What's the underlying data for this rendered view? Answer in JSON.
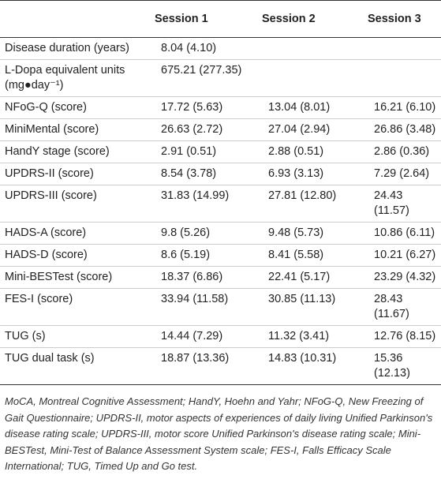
{
  "table": {
    "columns": [
      "Session 1",
      "Session 2",
      "Session 3"
    ],
    "rows": [
      {
        "label": "Disease duration (years)",
        "cells": [
          "8.04 (4.10)"
        ]
      },
      {
        "label": "L-Dopa equivalent units (mg●day⁻¹)",
        "cells": [
          "675.21 (277.35)"
        ]
      },
      {
        "label": "NFoG-Q (score)",
        "cells": [
          "17.72 (5.63)",
          "13.04 (8.01)",
          "16.21 (6.10)"
        ]
      },
      {
        "label": "MiniMental (score)",
        "cells": [
          "26.63 (2.72)",
          "27.04 (2.94)",
          "26.86 (3.48)"
        ]
      },
      {
        "label": "HandY stage (score)",
        "cells": [
          "2.91 (0.51)",
          "2.88 (0.51)",
          "2.86 (0.36)"
        ]
      },
      {
        "label": "UPDRS-II (score)",
        "cells": [
          "8.54 (3.78)",
          "6.93 (3.13)",
          "7.29 (2.64)"
        ]
      },
      {
        "label": "UPDRS-III (score)",
        "cells": [
          "31.83 (14.99)",
          "27.81 (12.80)",
          "24.43 (11.57)"
        ]
      },
      {
        "label": "HADS-A (score)",
        "cells": [
          "9.8 (5.26)",
          "9.48 (5.73)",
          "10.86 (6.11)"
        ]
      },
      {
        "label": "HADS-D (score)",
        "cells": [
          "8.6 (5.19)",
          "8.41 (5.58)",
          "10.21 (6.27)"
        ]
      },
      {
        "label": "Mini-BESTest (score)",
        "cells": [
          "18.37 (6.86)",
          "22.41 (5.17)",
          "23.29 (4.32)"
        ]
      },
      {
        "label": "FES-I (score)",
        "cells": [
          "33.94 (11.58)",
          "30.85 (11.13)",
          "28.43 (11.67)"
        ]
      },
      {
        "label": "TUG (s)",
        "cells": [
          "14.44 (7.29)",
          "11.32 (3.41)",
          "12.76 (8.15)"
        ]
      },
      {
        "label": "TUG dual task (s)",
        "cells": [
          "18.87 (13.36)",
          "14.83 (10.31)",
          "15.36 (12.13)"
        ]
      }
    ]
  },
  "footnote": "MoCA, Montreal Cognitive Assessment; HandY, Hoehn and Yahr; NFoG-Q, New Freezing of Gait Questionnaire; UPDRS-II, motor aspects of experiences of daily living Unified Parkinson's disease rating scale; UPDRS-III, motor score Unified Parkinson's disease rating scale; Mini-BESTest, Mini-Test of Balance Assessment System scale; FES-I, Falls Efficacy Scale International; TUG, Timed Up and Go test."
}
